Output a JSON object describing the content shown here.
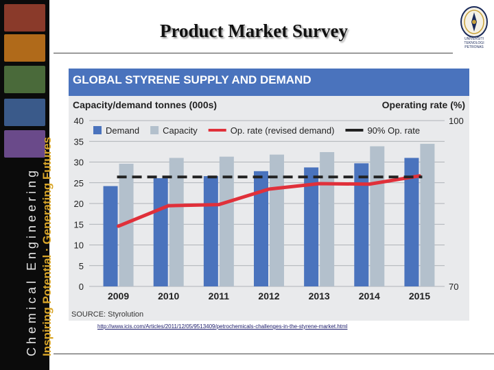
{
  "slide": {
    "title": "Product Market Survey",
    "sidebar_line1": "Chemical Engineering",
    "sidebar_line2": "Inspiring Potential · Generating Futures",
    "logo_text": "UNIVERSITI TEKNOLOGI PETRONAS",
    "url": "http://www.icis.com/Articles/2011/12/05/9513409/petrochemicals-challenges-in-the-styrene-market.html",
    "thumb_colors": [
      "#8a3a2a",
      "#b06a1a",
      "#4a6a3a",
      "#3a5a8a",
      "#6a4a8a"
    ]
  },
  "chart_data": {
    "type": "bar",
    "title": "GLOBAL STYRENE SUPPLY AND DEMAND",
    "ylabel_left": "Capacity/demand tonnes (000s)",
    "ylabel_right": "Operating rate (%)",
    "source": "SOURCE: Styrolution",
    "categories": [
      "2009",
      "2010",
      "2011",
      "2012",
      "2013",
      "2014",
      "2015"
    ],
    "ylim": [
      0,
      40
    ],
    "yticks": [
      0,
      5,
      10,
      15,
      20,
      25,
      30,
      35,
      40
    ],
    "y2lim": [
      70,
      100
    ],
    "y2ticks": [
      70,
      100
    ],
    "series": [
      {
        "name": "Demand",
        "kind": "bar",
        "color": "#4a73bd",
        "values": [
          24.2,
          26.1,
          26.6,
          27.8,
          28.7,
          29.7,
          31.0
        ]
      },
      {
        "name": "Capacity",
        "kind": "bar",
        "color": "#b3c0cc",
        "values": [
          29.6,
          31.0,
          31.3,
          31.8,
          32.4,
          33.8,
          34.4
        ]
      },
      {
        "name": "Op. rate (revised demand)",
        "kind": "line",
        "axis": "right",
        "color": "#e0303a",
        "values": [
          80.9,
          84.6,
          84.8,
          87.6,
          88.6,
          88.5,
          90.0
        ]
      },
      {
        "name": "90% Op. rate",
        "kind": "dashed",
        "axis": "right",
        "color": "#222222",
        "values": [
          89.8,
          89.8,
          89.8,
          89.8,
          89.8,
          89.8,
          89.8
        ]
      }
    ]
  }
}
